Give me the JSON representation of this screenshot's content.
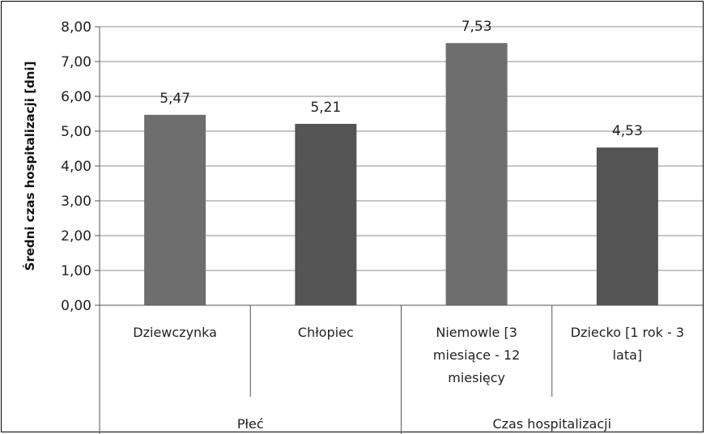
{
  "chart_data": {
    "type": "bar",
    "ylabel": "Średni czas hospitalizacji [dni]",
    "ylim": [
      0,
      8
    ],
    "yticks": [
      "0,00",
      "1,00",
      "2,00",
      "3,00",
      "4,00",
      "5,00",
      "6,00",
      "7,00",
      "8,00"
    ],
    "grid": true,
    "categories": [
      {
        "lines": [
          "Dziewczynka"
        ]
      },
      {
        "lines": [
          "Chłopiec"
        ]
      },
      {
        "lines": [
          "Niemowle [3",
          "miesiące - 12",
          "miesięcy"
        ]
      },
      {
        "lines": [
          "Dziecko [1 rok - 3",
          "lata]"
        ]
      }
    ],
    "values": [
      5.47,
      5.21,
      7.53,
      4.53
    ],
    "value_labels": [
      "5,47",
      "5,21",
      "7,53",
      "4,53"
    ],
    "bar_colors": [
      "#6e6e6e",
      "#545454",
      "#6e6e6e",
      "#545454"
    ],
    "groups": [
      {
        "label": "Płeć",
        "span": [
          0,
          1
        ]
      },
      {
        "label": "Czas hospitalizacji",
        "span": [
          2,
          3
        ]
      }
    ]
  }
}
